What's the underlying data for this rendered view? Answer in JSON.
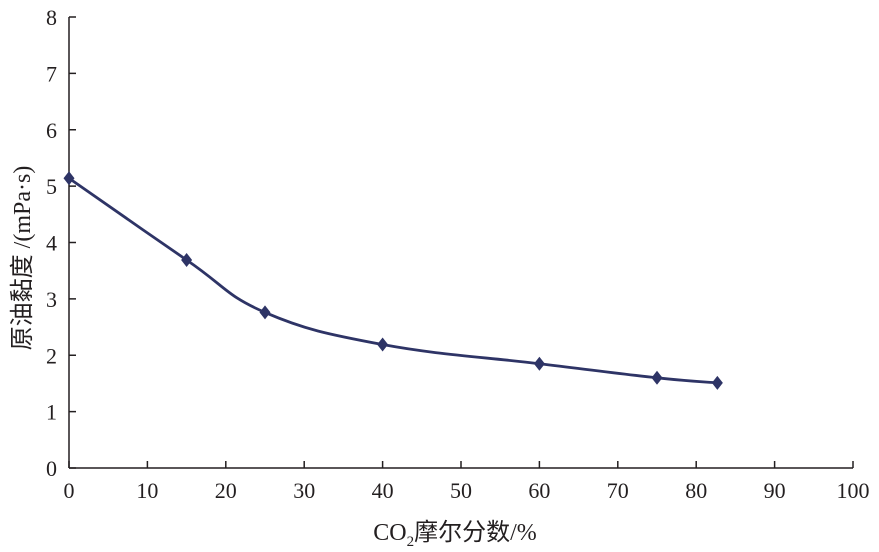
{
  "chart_data": {
    "type": "line",
    "title": "",
    "xlabel": "CO2摩尔分数/%",
    "xlabel_parts": {
      "main": "CO",
      "subscript": "2",
      "rest": "摩尔分数/%"
    },
    "ylabel": "原油黏度 /(mPa·s)",
    "xlim": [
      0,
      100
    ],
    "ylim": [
      0,
      8
    ],
    "xticks": [
      0,
      10,
      20,
      30,
      40,
      50,
      60,
      70,
      80,
      90,
      100
    ],
    "yticks": [
      0,
      1,
      2,
      3,
      4,
      5,
      6,
      7,
      8
    ],
    "grid": false,
    "legend": "none",
    "series": [
      {
        "name": "原油黏度",
        "color": "#2e3466",
        "marker": "diamond",
        "smooth": true,
        "x": [
          0,
          15,
          25,
          40,
          60,
          75,
          82.7
        ],
        "y": [
          5.14,
          3.69,
          2.76,
          2.19,
          1.85,
          1.6,
          1.51
        ]
      }
    ]
  }
}
